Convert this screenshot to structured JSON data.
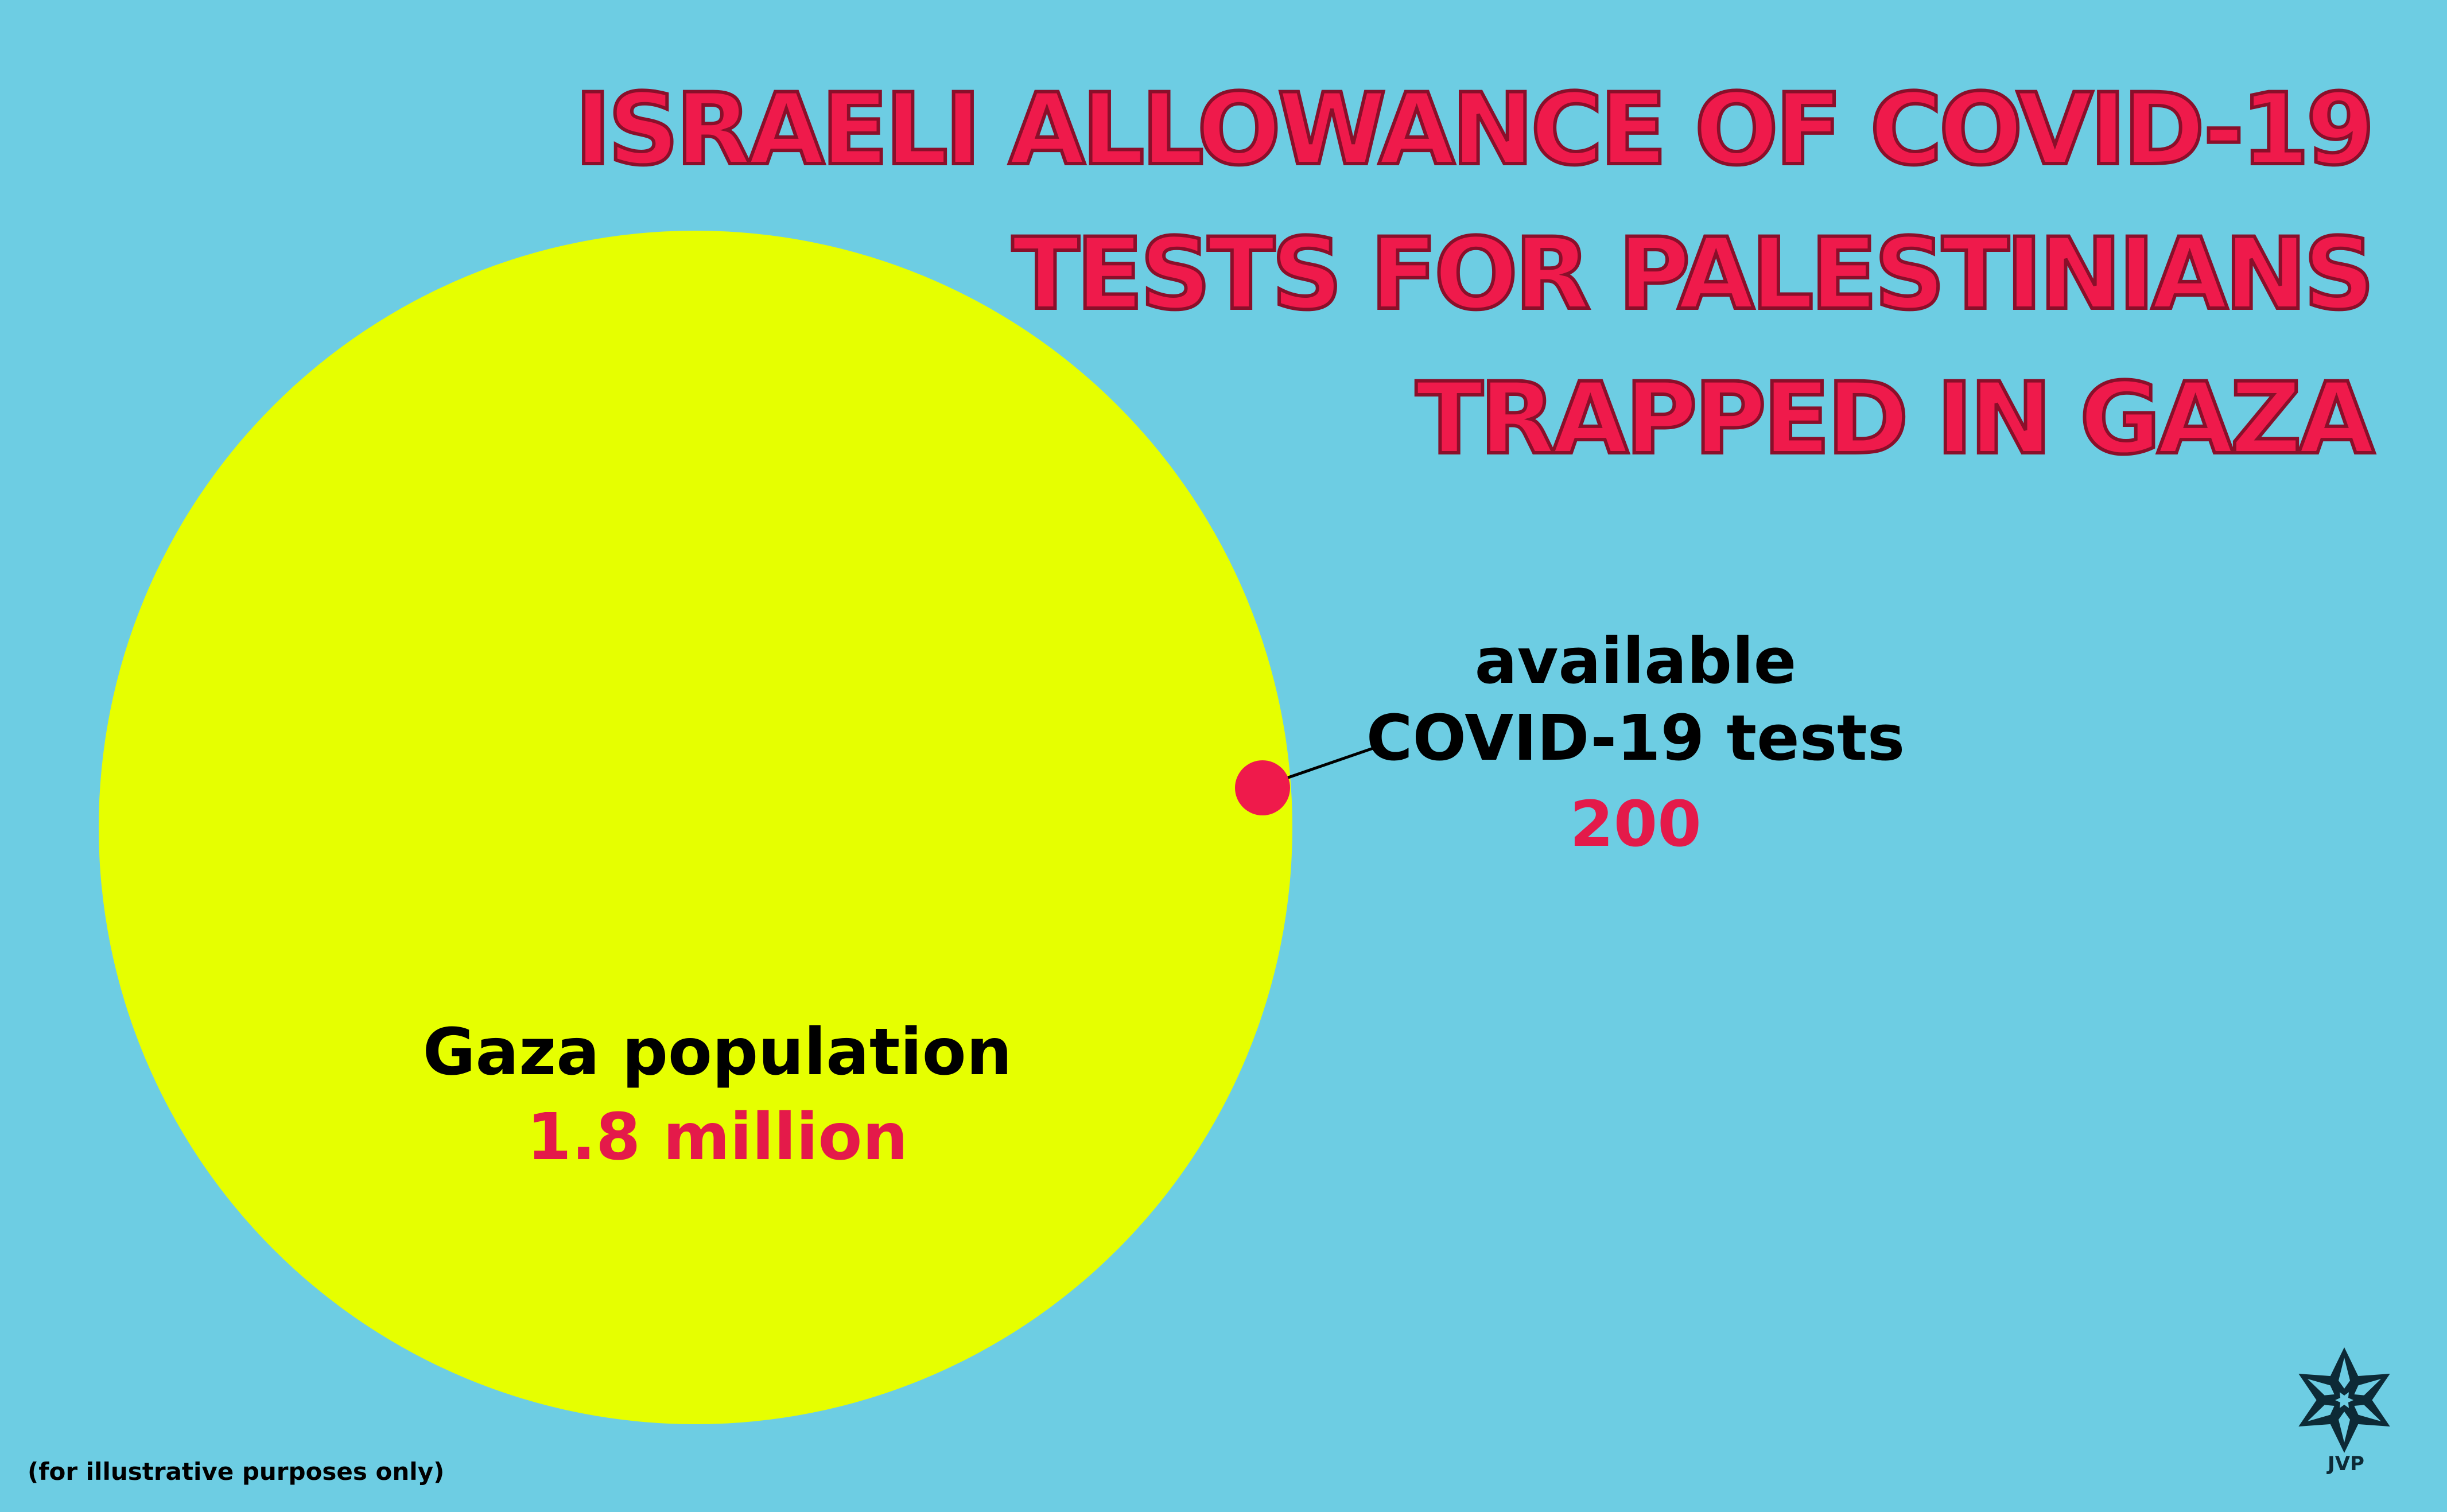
{
  "colors": {
    "background": "#6dcde3",
    "population_circle": "#e6ff00",
    "tests_dot": "#ef1a4b",
    "title_text": "#ef1a4b",
    "value_text": "#e41a4a",
    "label_text": "#000000",
    "logo": "#0d2a36"
  },
  "title_lines": [
    "ISRAELI ALLOWANCE OF COVID-19",
    "TESTS FOR PALESTINIANS",
    "TRAPPED IN GAZA"
  ],
  "population": {
    "label": "Gaza population",
    "value_text": "1.8 million"
  },
  "tests": {
    "label_line1": "available",
    "label_line2": "COVID-19 tests",
    "value_text": "200"
  },
  "footnote": "(for illustrative purposes only)",
  "logo": {
    "icon": "jvp-star-icon",
    "text": "JVP"
  },
  "chart_data": {
    "type": "bubble",
    "series": [
      {
        "label": "Gaza population",
        "value": 1800000
      },
      {
        "label": "available COVID-19 tests",
        "value": 200
      }
    ]
  }
}
